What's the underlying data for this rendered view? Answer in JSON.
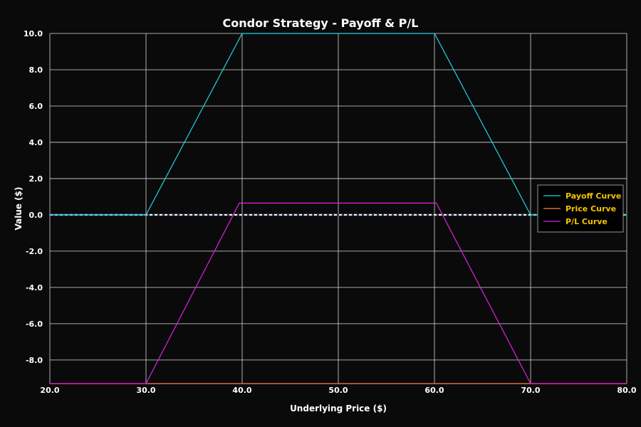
{
  "chart_data": {
    "type": "line",
    "title": "Condor Strategy - Payoff & P/L",
    "xlabel": "Underlying Price ($)",
    "ylabel": "Value ($)",
    "xlim": [
      20,
      80
    ],
    "ylim": [
      -9.3,
      10.0
    ],
    "xticks": [
      "20.0",
      "30.0",
      "40.0",
      "50.0",
      "60.0",
      "70.0",
      "80.0"
    ],
    "xtick_values": [
      20,
      30,
      40,
      50,
      60,
      70,
      80
    ],
    "yticks": [
      "10.0",
      "8.0",
      "6.0",
      "4.0",
      "2.0",
      "0.0",
      "-2.0",
      "-4.0",
      "-6.0",
      "-8.0"
    ],
    "ytick_values": [
      10,
      8,
      6,
      4,
      2,
      0,
      -2,
      -4,
      -6,
      -8
    ],
    "grid": true,
    "legend_position": "right",
    "zero_line": {
      "y": 0,
      "color": "#ffffff",
      "style": "dashed"
    },
    "series": [
      {
        "name": "Payoff Curve",
        "color": "#22d3e6",
        "x": [
          20,
          30,
          40,
          60,
          70,
          80
        ],
        "y": [
          0,
          0,
          10,
          10,
          0,
          0
        ]
      },
      {
        "name": "Price Curve",
        "color": "#ff7f50",
        "x": [
          20,
          80
        ],
        "y": [
          -9.3,
          -9.3
        ]
      },
      {
        "name": "P/L Curve",
        "color": "#e020e0",
        "x": [
          20,
          30,
          39.7,
          60.2,
          70,
          80
        ],
        "y": [
          -9.3,
          -9.3,
          0.65,
          0.65,
          -9.3,
          -9.3
        ]
      }
    ]
  }
}
